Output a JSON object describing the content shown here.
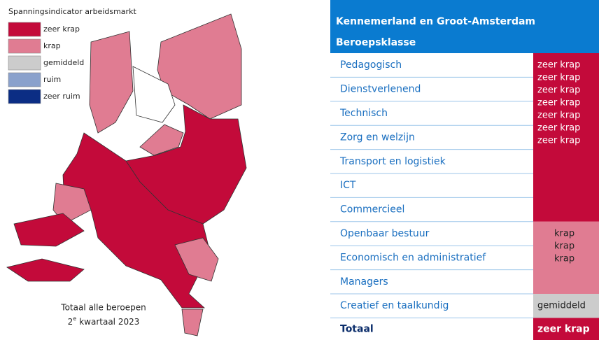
{
  "legend": {
    "title": "Spanningsindicator arbeidsmarkt",
    "items": [
      {
        "label": "zeer krap",
        "color": "#c30a3a"
      },
      {
        "label": "krap",
        "color": "#e07c92"
      },
      {
        "label": "gemiddeld",
        "color": "#cccccc"
      },
      {
        "label": "ruim",
        "color": "#8aa1cc"
      },
      {
        "label": "zeer ruim",
        "color": "#0b2d84"
      }
    ]
  },
  "caption": {
    "line1": "Totaal alle beroepen",
    "number": "2",
    "sup": "e",
    "rest": "kwartaal 2023"
  },
  "table": {
    "title": "Kennemerland en Groot-Amsterdam",
    "column": "Beroepsklasse",
    "rows": [
      {
        "label": "Pedagogisch",
        "value": "zeer krap"
      },
      {
        "label": "Dienstverlenend",
        "value": "zeer krap"
      },
      {
        "label": "Technisch",
        "value": "zeer krap"
      },
      {
        "label": "Zorg en welzijn",
        "value": "zeer krap"
      },
      {
        "label": "Transport en logistiek",
        "value": "zeer krap"
      },
      {
        "label": "ICT",
        "value": "zeer krap"
      },
      {
        "label": "Commercieel",
        "value": "zeer krap"
      },
      {
        "label": "Openbaar bestuur",
        "value": "krap"
      },
      {
        "label": "Economisch en administratief",
        "value": "krap"
      },
      {
        "label": "Managers",
        "value": "krap"
      },
      {
        "label": "Creatief en taalkundig",
        "value": "gemiddeld"
      }
    ],
    "total": {
      "label": "Totaal",
      "value": "zeer krap"
    }
  }
}
